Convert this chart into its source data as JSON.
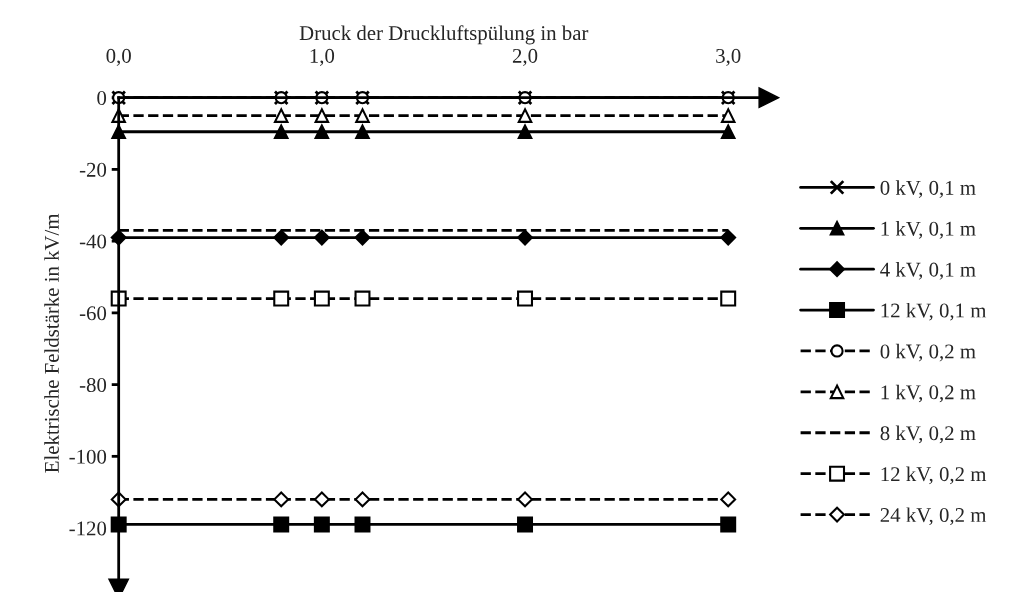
{
  "chart_data": {
    "type": "line",
    "xlabel": "Druck der Druckluftspülung in bar",
    "ylabel": "Elektrische Feldstärke in kV/m",
    "x": [
      0,
      0.8,
      1,
      1.2,
      2,
      3
    ],
    "xlim": [
      0,
      3.2
    ],
    "xticks": [
      {
        "value": 0,
        "label": "0,0"
      },
      {
        "value": 1,
        "label": "1,0"
      },
      {
        "value": 2,
        "label": "2,0"
      },
      {
        "value": 3,
        "label": "3,0"
      }
    ],
    "ylim": [
      -137,
      0
    ],
    "yticks": [
      0,
      -20,
      -40,
      -60,
      -80,
      -100,
      -120
    ],
    "grid": false,
    "legend": "right",
    "series": [
      {
        "name": "0 kV, 0,1 m",
        "color": "#000000",
        "marker": "cross",
        "line_style": "solid",
        "values": [
          0,
          0,
          0,
          0,
          0,
          0
        ]
      },
      {
        "name": "1 kV, 0,1 m",
        "color": "#000000",
        "marker": "triangle",
        "line_style": "solid",
        "values": [
          -9.5,
          -9.5,
          -9.5,
          -9.5,
          -9.5,
          -9.5
        ]
      },
      {
        "name": "4 kV, 0,1 m",
        "color": "#000000",
        "marker": "diamond",
        "line_style": "solid",
        "values": [
          -39,
          -39,
          -39,
          -39,
          -39,
          -39
        ]
      },
      {
        "name": "12 kV, 0,1 m",
        "color": "#000000",
        "marker": "square",
        "line_style": "solid",
        "values": [
          -119,
          -119,
          -119,
          -119,
          -119,
          -119
        ]
      },
      {
        "name": "0 kV, 0,2 m",
        "color": "#000000",
        "marker": "circle",
        "line_style": "dashed",
        "values": [
          0,
          0,
          0,
          0,
          0,
          0
        ]
      },
      {
        "name": "1 kV, 0,2 m",
        "color": "#000000",
        "marker": "triangle",
        "line_style": "dashed",
        "values": [
          -5,
          -5,
          -5,
          -5,
          -5,
          -5
        ]
      },
      {
        "name": "8 kV, 0,2 m",
        "color": "#000000",
        "marker": "none",
        "line_style": "dashed",
        "values": [
          -37,
          -37,
          -37,
          -37,
          -37,
          -37
        ]
      },
      {
        "name": "12 kV, 0,2 m",
        "color": "#000000",
        "marker": "square",
        "line_style": "dashed",
        "values": [
          -56,
          -56,
          -56,
          -56,
          -56,
          -56
        ]
      },
      {
        "name": "24 kV, 0,2 m",
        "color": "#000000",
        "marker": "diamond",
        "line_style": "dashed",
        "values": [
          -112,
          -112,
          -112,
          -112,
          -112,
          -112
        ]
      }
    ]
  }
}
